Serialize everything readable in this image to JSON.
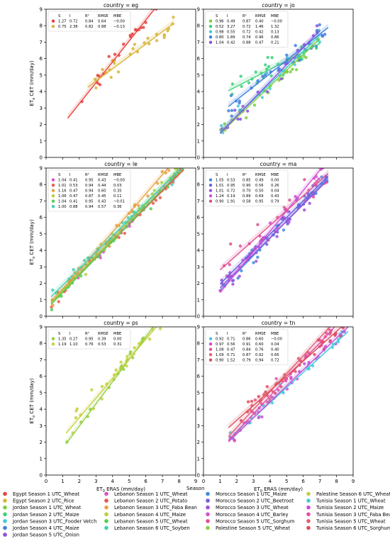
{
  "chart_data": {
    "type": "scatter",
    "xlim": [
      0,
      9
    ],
    "ylim": [
      0,
      9
    ],
    "xticks": [
      "0",
      "1",
      "2",
      "3",
      "4",
      "5",
      "6",
      "7",
      "8",
      "9"
    ],
    "yticks": [
      "0",
      "1",
      "2",
      "3",
      "4",
      "5",
      "6",
      "7",
      "8",
      "9"
    ],
    "ylabel_prefix": "ET",
    "ylabel_sub": "o",
    "ylabel_suffix": " CET (mm/day)",
    "xlabel_prefix": "ET",
    "xlabel_sub": "0",
    "xlabel_suffix": " ERAS (mm/day)",
    "stats_header": [
      "S",
      "I",
      "R²",
      "RMSE",
      "MBE"
    ],
    "legend_title": "Season",
    "legend_placement": "bottom",
    "legend": [
      {
        "label": "Egypt Season 1 UTC_Wheat",
        "color": "#e8423f"
      },
      {
        "label": "Egypt Season 2 UTC_Rice",
        "color": "#d9b43a"
      },
      {
        "label": "Jordan Season 1 UTC_Wheat",
        "color": "#7bcf3f"
      },
      {
        "label": "Jordan Season 2 UTC_Maize",
        "color": "#3fd07a"
      },
      {
        "label": "Jordan Season 3 UTC_Fooder Vetch",
        "color": "#43cbd2"
      },
      {
        "label": "Jordan Season 4 UTC_Maize",
        "color": "#3b7fe0"
      },
      {
        "label": "Jordan Season 5 UTC_Onion",
        "color": "#8a4fe0"
      },
      {
        "label": "Lebanon Season 1 UTC_Wheat",
        "color": "#e04fc8"
      },
      {
        "label": "Lebanon Season 2 UTC_Potato",
        "color": "#e85a4a"
      },
      {
        "label": "Lebanon Season 3 UTC_Faba Bean",
        "color": "#e8a040"
      },
      {
        "label": "Lebanon Season 4 UTC_Maize",
        "color": "#b8cf3a"
      },
      {
        "label": "Lebanon Season 5 UTC_Wheat",
        "color": "#52d052"
      },
      {
        "label": "Lebanon Season 6 UTC_Soyben",
        "color": "#3fd0b0"
      },
      {
        "label": "Morocco Season 1 UTC_Maize",
        "color": "#3f8be0"
      },
      {
        "label": "Morocco Season 2 UTC_Beetroot",
        "color": "#6a5fe0"
      },
      {
        "label": "Morocco Season 3 UTC_Wheat",
        "color": "#a050e0"
      },
      {
        "label": "Morocco Season 4 UTC_Barley",
        "color": "#d24fd8"
      },
      {
        "label": "Morocco Season 5 UTC_Sorghum",
        "color": "#e04f90"
      },
      {
        "label": "Palestine Season 5 UTC_Wheat",
        "color": "#8fd040"
      },
      {
        "label": "Palestine Season 6 UTC_Wheat",
        "color": "#c8d040"
      },
      {
        "label": "Tunisia Season 1 UTC_Wheat",
        "color": "#45c8e0"
      },
      {
        "label": "Tunisia Season 2 UTC_Maize",
        "color": "#c84fd8"
      },
      {
        "label": "Tunisia Season 3 UTC_Faba Bean",
        "color": "#e04fa8"
      },
      {
        "label": "Tunisia Season 5 UTC_Wheat",
        "color": "#e05f70"
      },
      {
        "label": "Tunisia Season 6 UTC_Sorghum",
        "color": "#e04a5a"
      }
    ],
    "panels": [
      {
        "title": "country = eg",
        "fits": [
          {
            "color": "#e8423f",
            "S": "1.27",
            "I": "0.72",
            "R2": "0.84",
            "RMSE": "0.64",
            "MBE": "−0.00",
            "x_range": [
              1.3,
              9.0
            ]
          },
          {
            "color": "#d9b43a",
            "S": "0.75",
            "I": "2.38",
            "R2": "0.82",
            "RMSE": "0.88",
            "MBE": "−0.13",
            "x_range": [
              2.5,
              7.7
            ]
          }
        ]
      },
      {
        "title": "country = jo",
        "fits": [
          {
            "color": "#7bcf3f",
            "S": "0.96",
            "I": "0.49",
            "R2": "0.87",
            "RMSE": "0.40",
            "MBE": "−0.00",
            "x_range": [
              1.0,
              7.0
            ]
          },
          {
            "color": "#3fd07a",
            "S": "0.52",
            "I": "3.27",
            "R2": "0.72",
            "RMSE": "1.46",
            "MBE": "1.32",
            "x_range": [
              1.5,
              7.0
            ]
          },
          {
            "color": "#43cbd2",
            "S": "0.98",
            "I": "0.55",
            "R2": "0.72",
            "RMSE": "0.42",
            "MBE": "0.13",
            "x_range": [
              1.0,
              7.0
            ]
          },
          {
            "color": "#3b7fe0",
            "S": "0.80",
            "I": "1.89",
            "R2": "0.74",
            "RMSE": "0.96",
            "MBE": "0.86",
            "x_range": [
              1.5,
              7.5
            ]
          },
          {
            "color": "#8a4fe0",
            "S": "1.04",
            "I": "0.42",
            "R2": "0.88",
            "RMSE": "0.47",
            "MBE": "0.21",
            "x_range": [
              1.0,
              7.0
            ]
          }
        ]
      },
      {
        "title": "country = le",
        "fits": [
          {
            "color": "#e04fc8",
            "S": "1.04",
            "I": "0.41",
            "R2": "0.95",
            "RMSE": "0.43",
            "MBE": "−0.00",
            "x_range": [
              0.3,
              8.3
            ]
          },
          {
            "color": "#e85a4a",
            "S": "1.01",
            "I": "0.53",
            "R2": "0.94",
            "RMSE": "0.44",
            "MBE": "0.03",
            "x_range": [
              0.3,
              8.3
            ]
          },
          {
            "color": "#e8a040",
            "S": "1.16",
            "I": "0.47",
            "R2": "0.94",
            "RMSE": "0.60",
            "MBE": "0.35",
            "x_range": [
              0.3,
              8.0
            ]
          },
          {
            "color": "#b8cf3a",
            "S": "1.06",
            "I": "0.47",
            "R2": "0.87",
            "RMSE": "0.45",
            "MBE": "0.11",
            "x_range": [
              0.3,
              8.3
            ]
          },
          {
            "color": "#52d052",
            "S": "1.04",
            "I": "0.41",
            "R2": "0.95",
            "RMSE": "0.43",
            "MBE": "−0.01",
            "x_range": [
              0.3,
              8.3
            ]
          },
          {
            "color": "#3fd0b0",
            "S": "1.00",
            "I": "0.88",
            "R2": "0.94",
            "RMSE": "0.57",
            "MBE": "0.36",
            "x_range": [
              0.3,
              8.0
            ]
          }
        ]
      },
      {
        "title": "country = ma",
        "fits": [
          {
            "color": "#3f8be0",
            "S": "1.05",
            "I": "0.53",
            "R2": "0.85",
            "RMSE": "0.49",
            "MBE": "0.00",
            "x_range": [
              1.0,
              7.5
            ]
          },
          {
            "color": "#6a5fe0",
            "S": "1.01",
            "I": "0.95",
            "R2": "0.90",
            "RMSE": "0.56",
            "MBE": "0.26",
            "x_range": [
              1.0,
              7.5
            ]
          },
          {
            "color": "#a050e0",
            "S": "1.01",
            "I": "0.72",
            "R2": "0.70",
            "RMSE": "0.50",
            "MBE": "0.04",
            "x_range": [
              1.0,
              7.5
            ]
          },
          {
            "color": "#d24fd8",
            "S": "1.24",
            "I": "0.19",
            "R2": "0.89",
            "RMSE": "0.69",
            "MBE": "0.43",
            "x_range": [
              1.0,
              7.5
            ]
          },
          {
            "color": "#e04f90",
            "S": "0.90",
            "I": "1.91",
            "R2": "0.58",
            "RMSE": "0.95",
            "MBE": "0.79",
            "x_range": [
              1.0,
              7.5
            ]
          }
        ]
      },
      {
        "title": "country = ps",
        "fits": [
          {
            "color": "#8fd040",
            "S": "1.35",
            "I": "0.27",
            "R2": "0.95",
            "RMSE": "0.39",
            "MBE": "0.00",
            "x_range": [
              1.2,
              7.8
            ]
          },
          {
            "color": "#c8d040",
            "S": "1.19",
            "I": "1.10",
            "R2": "0.76",
            "RMSE": "0.53",
            "MBE": "0.31",
            "x_range": [
              1.2,
              7.8
            ]
          }
        ]
      },
      {
        "title": "country = tn",
        "fits": [
          {
            "color": "#45c8e0",
            "S": "0.92",
            "I": "0.71",
            "R2": "0.86",
            "RMSE": "0.60",
            "MBE": "−0.00",
            "x_range": [
              1.5,
              8.7
            ]
          },
          {
            "color": "#c84fd8",
            "S": "0.97",
            "I": "0.56",
            "R2": "0.91",
            "RMSE": "0.60",
            "MBE": "0.04",
            "x_range": [
              1.5,
              8.7
            ]
          },
          {
            "color": "#e04fa8",
            "S": "1.08",
            "I": "0.47",
            "R2": "0.84",
            "RMSE": "0.76",
            "MBE": "0.40",
            "x_range": [
              1.5,
              8.7
            ]
          },
          {
            "color": "#e05f70",
            "S": "1.09",
            "I": "0.71",
            "R2": "0.87",
            "RMSE": "0.92",
            "MBE": "0.66",
            "x_range": [
              1.5,
              8.7
            ]
          },
          {
            "color": "#e04a5a",
            "S": "0.90",
            "I": "1.52",
            "R2": "0.79",
            "RMSE": "0.94",
            "MBE": "0.72",
            "x_range": [
              1.5,
              8.7
            ]
          }
        ]
      }
    ]
  }
}
